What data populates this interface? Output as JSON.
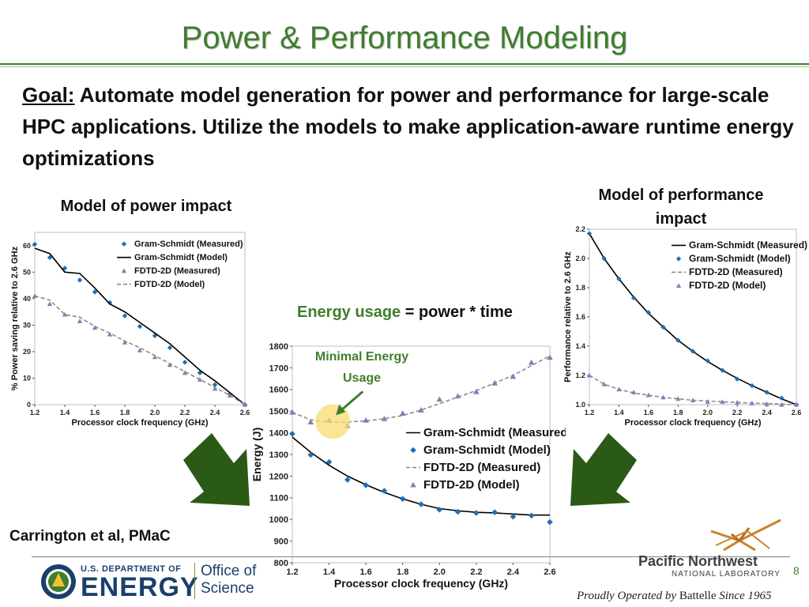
{
  "title": "Power & Performance Modeling",
  "goal": {
    "label": "Goal:",
    "text": " Automate model generation for  power and performance for large-scale HPC applications. Utilize the models to make application-aware runtime energy optimizations"
  },
  "labels": {
    "power_title": "Model of power impact",
    "perf_title_line1": "Model of performance",
    "perf_title_line2": "impact",
    "equation_highlight": "Energy usage",
    "equation_rest": " = power * time",
    "annotation_line1": "Minimal Energy",
    "annotation_line2": "Usage",
    "citation": "Carrington et al, PMaC"
  },
  "footer": {
    "doe_small": "U.S. DEPARTMENT OF",
    "doe_big": "ENERGY",
    "office_line1": "Office of",
    "office_line2": "Science",
    "pnnl_line1": "Pacific Northwest",
    "pnnl_line2": "NATIONAL LABORATORY",
    "battelle_pre": "Proudly Operated by ",
    "battelle_name": "Battelle",
    "battelle_post": " Since 1965",
    "page_number": "8"
  },
  "colors": {
    "title_green": "#3f7d2e",
    "gs_series": "#1f6fb4",
    "fdtd_series": "#8a7bb5",
    "arrow_green": "#2b5a16",
    "highlight": "#f7dc6f"
  },
  "chart_data": [
    {
      "id": "power",
      "type": "line",
      "title": "",
      "xlabel": "Processor clock frequency (GHz)",
      "ylabel": "% Power saving relative to 2.6 GHz",
      "xlim": [
        1.2,
        2.6
      ],
      "ylim": [
        0,
        65
      ],
      "xticks": [
        "1.2",
        "1.4",
        "1.6",
        "1.8",
        "2.0",
        "2.2",
        "2.4",
        "2.6"
      ],
      "yticks": [
        "0",
        "10",
        "20",
        "30",
        "40",
        "50",
        "60"
      ],
      "legend": [
        "Gram-Schmidt (Measured)",
        "Gram-Schmidt (Model)",
        "FDTD-2D (Measured)",
        "FDTD-2D (Model)"
      ],
      "legend_position": "top-right",
      "x": [
        1.2,
        1.3,
        1.4,
        1.5,
        1.6,
        1.7,
        1.8,
        1.9,
        2.0,
        2.1,
        2.2,
        2.3,
        2.4,
        2.5,
        2.6
      ],
      "series": [
        {
          "name": "Gram-Schmidt (Measured)",
          "style": "diamond",
          "values": [
            60.5,
            55.5,
            51.5,
            47,
            42.5,
            38.5,
            33.5,
            29.5,
            26,
            21.5,
            16,
            12,
            7.5,
            4,
            0
          ]
        },
        {
          "name": "Gram-Schmidt (Model)",
          "style": "solid",
          "values": [
            59,
            57,
            50,
            49.5,
            44,
            38,
            35,
            31,
            27,
            23,
            18,
            13,
            9,
            4.5,
            0
          ]
        },
        {
          "name": "FDTD-2D (Measured)",
          "style": "triangle",
          "values": [
            41,
            38,
            34,
            31.5,
            29,
            26.5,
            23.5,
            20.5,
            18,
            15,
            12,
            9.5,
            6,
            3.5,
            0
          ]
        },
        {
          "name": "FDTD-2D (Model)",
          "style": "dashed",
          "values": [
            41,
            39.5,
            34,
            33,
            29.5,
            27,
            24,
            21.5,
            18.5,
            15.5,
            12.5,
            9.5,
            6.5,
            3.5,
            0
          ]
        }
      ]
    },
    {
      "id": "energy",
      "type": "line",
      "title": "",
      "xlabel": "Processor clock frequency (GHz)",
      "ylabel": "Energy (J)",
      "xlim": [
        1.2,
        2.6
      ],
      "ylim": [
        800,
        1800
      ],
      "xticks": [
        "1.2",
        "1.4",
        "1.6",
        "1.8",
        "2.0",
        "2.2",
        "2.4",
        "2.6"
      ],
      "yticks": [
        "800",
        "900",
        "1000",
        "1100",
        "1200",
        "1300",
        "1400",
        "1500",
        "1600",
        "1700",
        "1800"
      ],
      "legend": [
        "Gram-Schmidt (Measured)",
        "Gram-Schmidt (Model)",
        "FDTD-2D (Measured)",
        "FDTD-2D (Model)"
      ],
      "legend_position": "center-right",
      "x": [
        1.2,
        1.3,
        1.4,
        1.5,
        1.6,
        1.7,
        1.8,
        1.9,
        2.0,
        2.1,
        2.2,
        2.3,
        2.4,
        2.5,
        2.6
      ],
      "series": [
        {
          "name": "Gram-Schmidt (Measured)",
          "style": "solid",
          "values": [
            1380,
            1310,
            1250,
            1200,
            1160,
            1125,
            1095,
            1070,
            1050,
            1040,
            1033,
            1030,
            1025,
            1020,
            1020
          ]
        },
        {
          "name": "Gram-Schmidt (Model)",
          "style": "diamond",
          "values": [
            1395,
            1298,
            1265,
            1183,
            1158,
            1132,
            1095,
            1070,
            1045,
            1035,
            1030,
            1033,
            1013,
            1018,
            988
          ]
        },
        {
          "name": "FDTD-2D (Measured)",
          "style": "dashed",
          "values": [
            1495,
            1460,
            1450,
            1450,
            1455,
            1465,
            1480,
            1505,
            1535,
            1565,
            1595,
            1630,
            1665,
            1710,
            1755
          ]
        },
        {
          "name": "FDTD-2D (Model)",
          "style": "triangle",
          "values": [
            1495,
            1450,
            1458,
            1433,
            1458,
            1465,
            1490,
            1505,
            1555,
            1570,
            1590,
            1630,
            1660,
            1725,
            1748
          ]
        }
      ]
    },
    {
      "id": "performance",
      "type": "line",
      "title": "",
      "xlabel": "Processor clock frequency (GHz)",
      "ylabel": "Performance relative to 2.6 GHz",
      "xlim": [
        1.2,
        2.6
      ],
      "ylim": [
        1.0,
        2.2
      ],
      "xticks": [
        "1.2",
        "1.4",
        "1.6",
        "1.8",
        "2.0",
        "2.2",
        "2.4",
        "2.6"
      ],
      "yticks": [
        "1.0",
        "1.2",
        "1.4",
        "1.6",
        "1.8",
        "2.0",
        "2.2"
      ],
      "legend": [
        "Gram-Schmidt (Measured)",
        "Gram-Schmidt (Model)",
        "FDTD-2D (Measured)",
        "FDTD-2D (Model)"
      ],
      "legend_position": "top-right",
      "x": [
        1.2,
        1.3,
        1.4,
        1.5,
        1.6,
        1.7,
        1.8,
        1.9,
        2.0,
        2.1,
        2.2,
        2.3,
        2.4,
        2.5,
        2.6
      ],
      "series": [
        {
          "name": "Gram-Schmidt (Measured)",
          "style": "solid",
          "values": [
            2.17,
            2.0,
            1.86,
            1.735,
            1.625,
            1.53,
            1.44,
            1.365,
            1.295,
            1.235,
            1.18,
            1.13,
            1.085,
            1.04,
            1.0
          ]
        },
        {
          "name": "Gram-Schmidt (Model)",
          "style": "diamond",
          "values": [
            2.17,
            2.0,
            1.86,
            1.73,
            1.63,
            1.53,
            1.44,
            1.365,
            1.3,
            1.235,
            1.175,
            1.13,
            1.085,
            1.045,
            1.0
          ]
        },
        {
          "name": "FDTD-2D (Measured)",
          "style": "dashed",
          "values": [
            1.2,
            1.14,
            1.105,
            1.08,
            1.065,
            1.05,
            1.04,
            1.03,
            1.025,
            1.02,
            1.015,
            1.01,
            1.008,
            1.004,
            1.0
          ]
        },
        {
          "name": "FDTD-2D (Model)",
          "style": "triangle",
          "values": [
            1.2,
            1.14,
            1.105,
            1.085,
            1.065,
            1.05,
            1.04,
            1.03,
            1.02,
            1.02,
            1.015,
            1.01,
            1.005,
            1.0,
            1.0
          ]
        }
      ]
    }
  ]
}
